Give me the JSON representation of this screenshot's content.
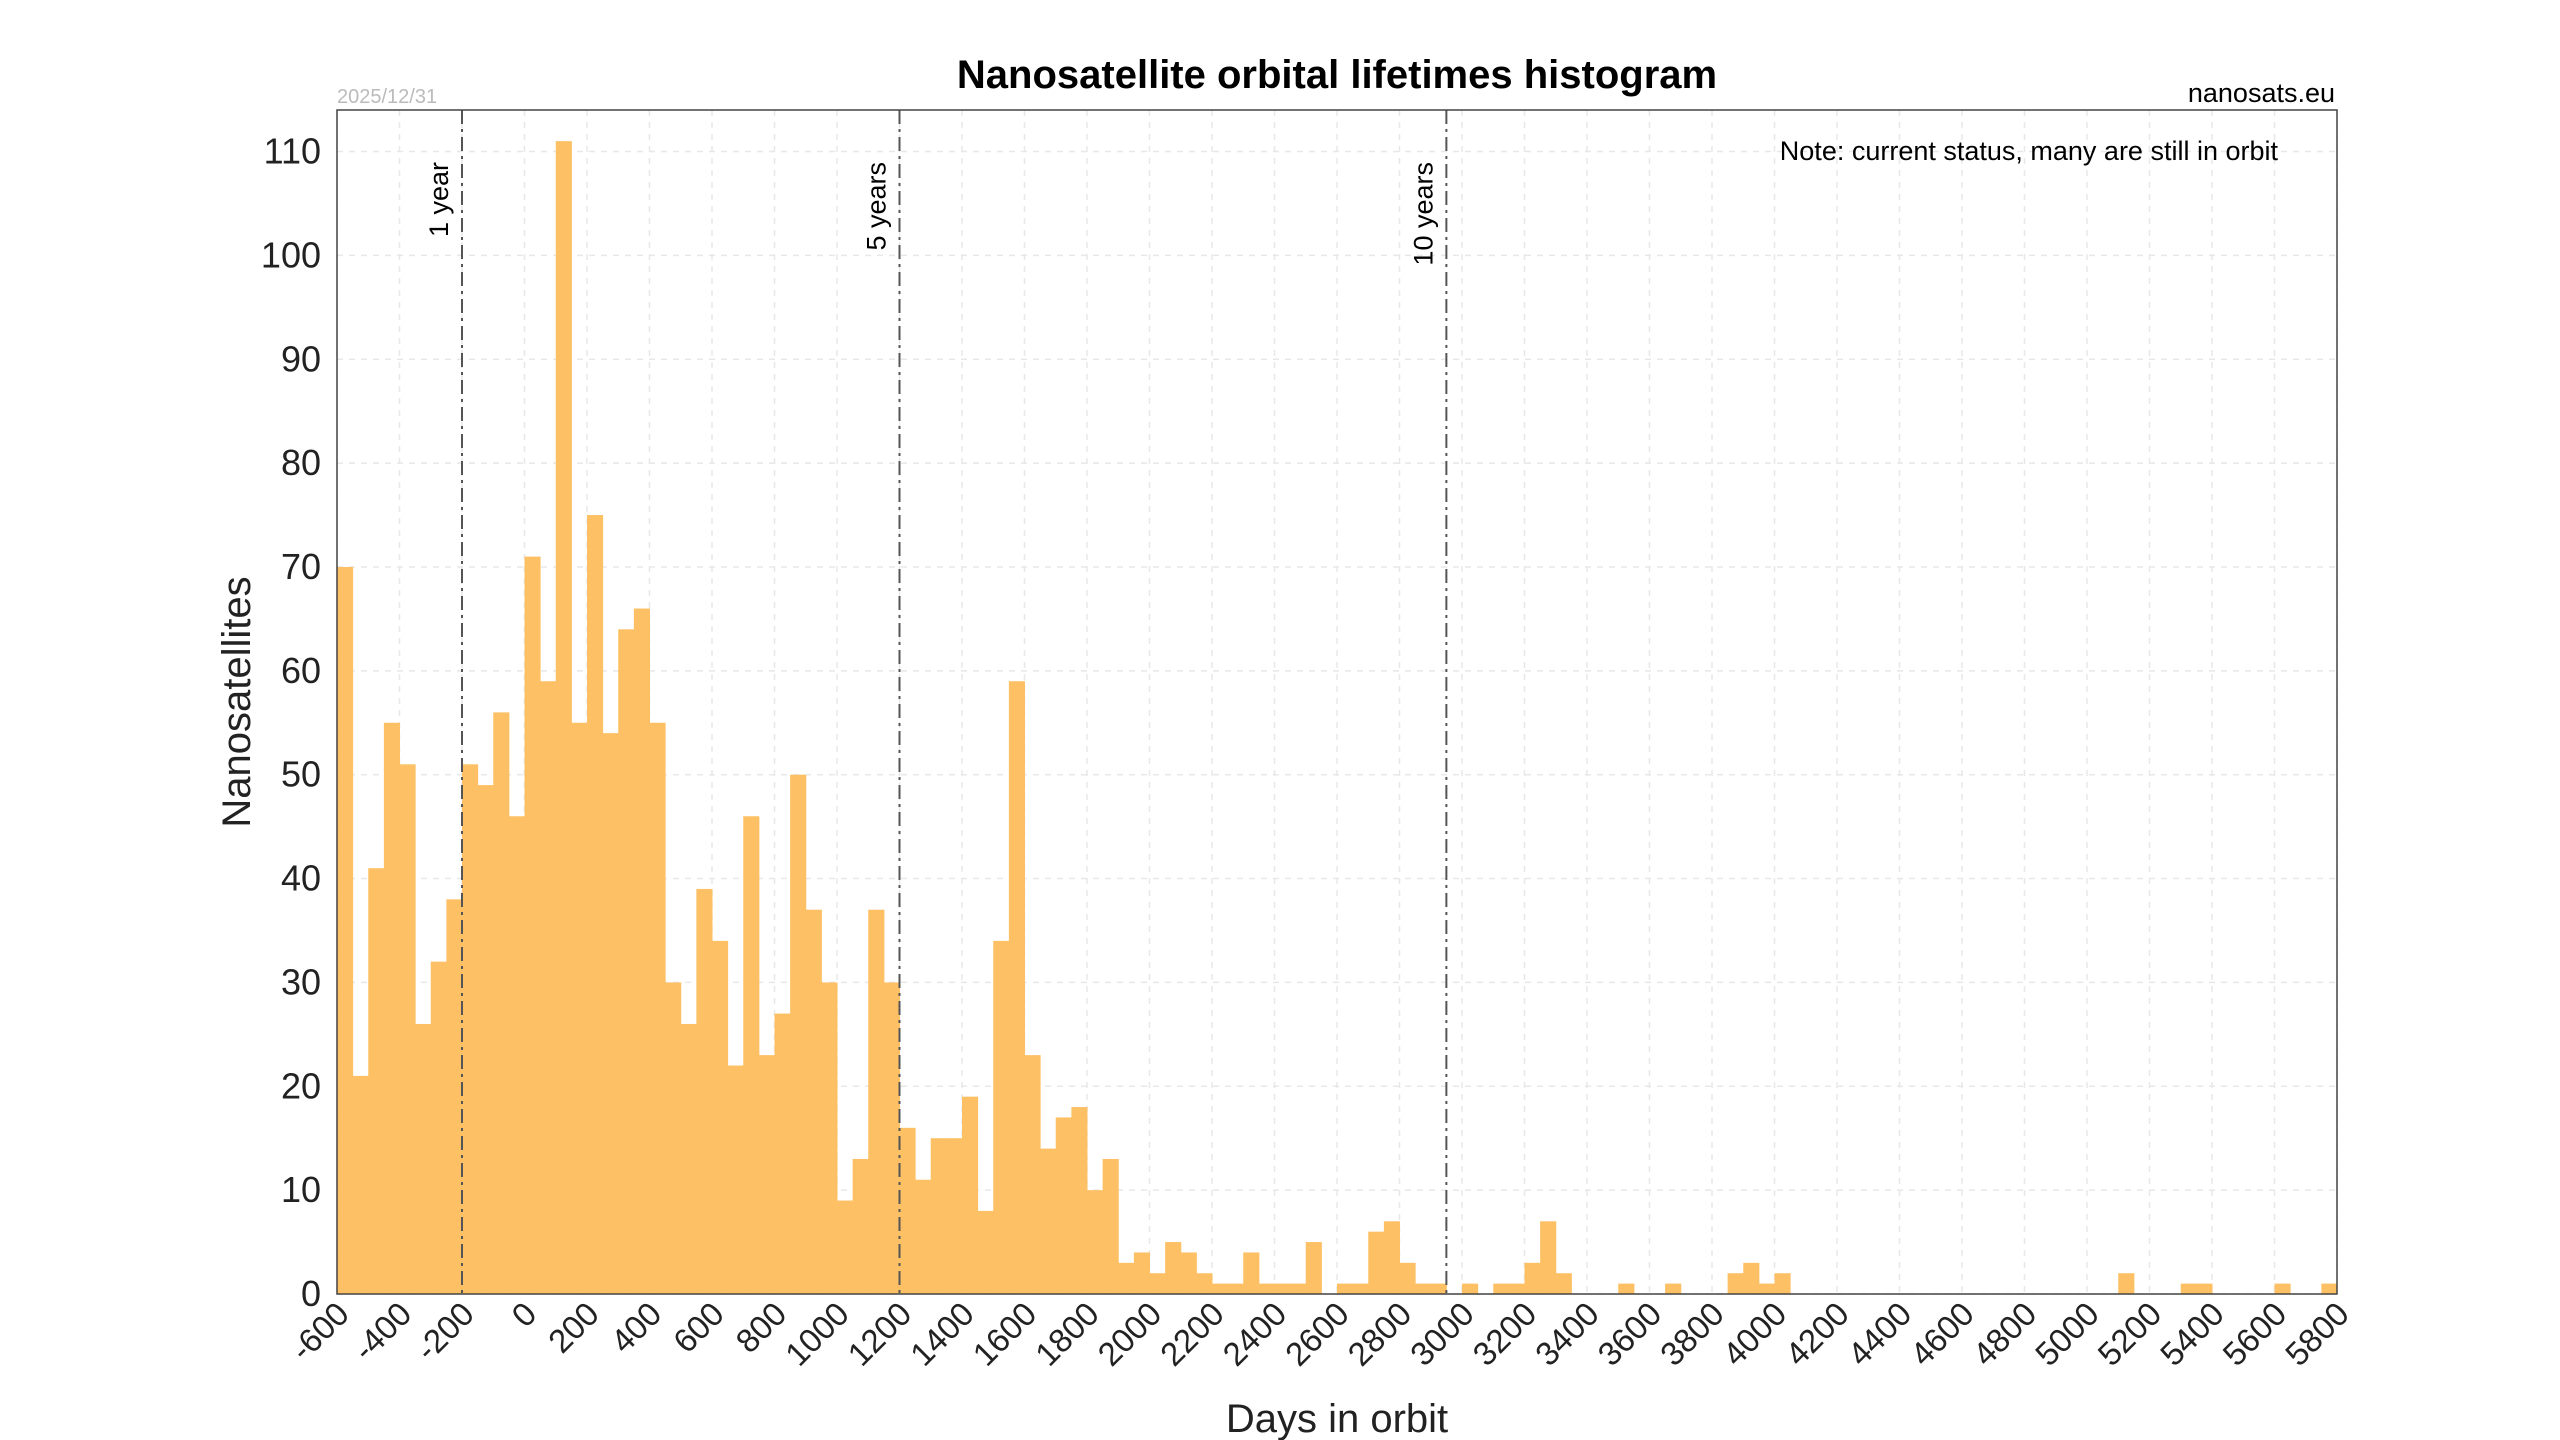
{
  "header": {
    "date": "2025/12/31",
    "source": "nanosats.eu",
    "note": "Note: current status, many are still in orbit"
  },
  "colors": {
    "bar": "#fdc064",
    "frame": "#444444"
  },
  "chart_data": {
    "type": "bar",
    "title": "Nanosatellite orbital lifetimes histogram",
    "xlabel": "Days in orbit",
    "ylabel": "Nanosatellites",
    "xlim": [
      -600,
      5800
    ],
    "ylim": [
      0,
      114
    ],
    "grid": true,
    "x_ticks": [
      "-600",
      "-400",
      "-200",
      "0",
      "200",
      "400",
      "600",
      "800",
      "1000",
      "1200",
      "1400",
      "1600",
      "1800",
      "2000",
      "2200",
      "2400",
      "2600",
      "2800",
      "3000",
      "3200",
      "3400",
      "3600",
      "3800",
      "4000",
      "4200",
      "4400",
      "4600",
      "4800",
      "5000",
      "5200",
      "5400",
      "5600",
      "5800"
    ],
    "y_ticks": [
      "0",
      "10",
      "20",
      "30",
      "40",
      "50",
      "60",
      "70",
      "80",
      "90",
      "100",
      "110"
    ],
    "bin_width": 50,
    "bin_start": -600,
    "values": [
      70,
      21,
      41,
      55,
      51,
      26,
      32,
      38,
      51,
      49,
      56,
      46,
      71,
      59,
      111,
      55,
      75,
      54,
      64,
      66,
      55,
      30,
      26,
      39,
      34,
      22,
      46,
      23,
      27,
      50,
      37,
      30,
      9,
      13,
      37,
      30,
      16,
      11,
      15,
      15,
      19,
      8,
      34,
      59,
      23,
      14,
      17,
      18,
      10,
      13,
      3,
      4,
      2,
      5,
      4,
      2,
      1,
      1,
      4,
      1,
      1,
      1,
      5,
      0,
      1,
      1,
      6,
      7,
      3,
      1,
      1,
      0,
      1,
      0,
      1,
      1,
      3,
      7,
      2,
      0,
      0,
      0,
      1,
      0,
      0,
      1,
      0,
      0,
      0,
      2,
      3,
      1,
      2,
      0,
      0,
      0,
      0,
      0,
      0,
      0,
      0,
      0,
      0,
      0,
      0,
      0,
      0,
      0,
      0,
      0,
      0,
      0,
      0,
      0,
      2,
      0,
      0,
      0,
      1,
      1,
      0,
      0,
      0,
      0,
      1,
      0,
      0,
      1
    ],
    "reference_lines": [
      {
        "label": "1 year",
        "x": -200
      },
      {
        "label": "5 years",
        "x": 1200
      },
      {
        "label": "10 years",
        "x": 2950
      }
    ]
  }
}
